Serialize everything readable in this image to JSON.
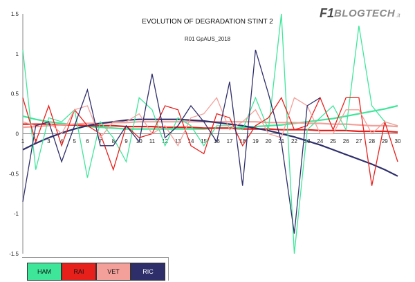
{
  "logo": {
    "f1": "F1",
    "blog": "BLOGTECH",
    "tld": ".it"
  },
  "chart_data": {
    "type": "line",
    "title": "EVOLUTION OF DEGRADATION STINT 2",
    "subtitle": "R01 GpAUS_2018",
    "x": [
      1,
      2,
      3,
      4,
      5,
      6,
      7,
      8,
      9,
      10,
      11,
      12,
      13,
      14,
      15,
      16,
      17,
      18,
      19,
      20,
      21,
      22,
      23,
      24,
      25,
      26,
      27,
      28,
      29,
      30
    ],
    "ylim": [
      -1.5,
      1.5
    ],
    "yticks": [
      "1.5",
      "1",
      "0.5",
      "0",
      "-0.5",
      "-1",
      "-1.5"
    ],
    "grid": false,
    "legend_position": "bottom-left",
    "series": [
      {
        "name": "HAM",
        "color": "#3ee69a",
        "values": [
          1.05,
          -0.45,
          0.2,
          0.15,
          0.3,
          -0.55,
          0.15,
          -0.05,
          -0.35,
          0.45,
          0.3,
          -0.15,
          0.2,
          0.1,
          -0.15,
          0.1,
          0.1,
          0.05,
          0.45,
          0.05,
          1.5,
          -1.5,
          0.05,
          0.2,
          0.35,
          0.05,
          1.35,
          0.35,
          0.15,
          0.1
        ],
        "trend": [
          0.22,
          0.18,
          0.15,
          0.13,
          0.11,
          0.09,
          0.08,
          0.07,
          0.06,
          0.06,
          0.06,
          0.06,
          0.06,
          0.06,
          0.06,
          0.07,
          0.07,
          0.08,
          0.09,
          0.1,
          0.11,
          0.13,
          0.15,
          0.17,
          0.19,
          0.22,
          0.25,
          0.28,
          0.31,
          0.35
        ]
      },
      {
        "name": "RAI",
        "color": "#e8201c",
        "values": [
          0.45,
          -0.1,
          0.35,
          -0.15,
          0.3,
          0.1,
          0.0,
          -0.45,
          0.1,
          -0.05,
          0.0,
          0.35,
          0.3,
          -0.15,
          -0.25,
          0.25,
          0.2,
          -0.15,
          0.1,
          0.2,
          0.45,
          0.05,
          0.1,
          0.45,
          0.05,
          0.45,
          0.45,
          -0.65,
          0.15,
          -0.35
        ],
        "trend": [
          0.12,
          0.12,
          0.12,
          0.11,
          0.11,
          0.1,
          0.1,
          0.1,
          0.09,
          0.09,
          0.09,
          0.08,
          0.08,
          0.08,
          0.07,
          0.07,
          0.07,
          0.06,
          0.06,
          0.06,
          0.05,
          0.05,
          0.05,
          0.04,
          0.04,
          0.04,
          0.03,
          0.03,
          0.03,
          0.02
        ]
      },
      {
        "name": "VET",
        "color": "#f4a09a",
        "values": [
          0.15,
          0.1,
          0.15,
          0.0,
          0.3,
          0.35,
          -0.05,
          0.15,
          0.15,
          0.25,
          0.0,
          0.1,
          -0.15,
          0.2,
          0.25,
          0.45,
          0.05,
          0.15,
          0.3,
          0.0,
          -0.05,
          0.45,
          0.35,
          0.0,
          0.0,
          0.3,
          0.3,
          0.0,
          0.15,
          0.1
        ],
        "trend": [
          0.08,
          0.09,
          0.1,
          0.11,
          0.12,
          0.13,
          0.13,
          0.14,
          0.14,
          0.15,
          0.15,
          0.15,
          0.15,
          0.15,
          0.15,
          0.15,
          0.15,
          0.15,
          0.15,
          0.14,
          0.14,
          0.14,
          0.13,
          0.13,
          0.12,
          0.12,
          0.11,
          0.1,
          0.1,
          0.09
        ]
      },
      {
        "name": "RIC",
        "color": "#2e2e6b",
        "values": [
          -0.85,
          0.1,
          0.15,
          -0.35,
          0.1,
          0.55,
          -0.15,
          -0.15,
          0.1,
          -0.1,
          0.75,
          -0.05,
          0.1,
          0.35,
          0.15,
          -0.1,
          0.65,
          -0.65,
          1.05,
          0.5,
          -0.1,
          -1.25,
          0.35,
          0.45,
          null,
          null,
          null,
          null,
          null,
          null
        ],
        "trend": [
          -0.2,
          -0.12,
          -0.05,
          0.01,
          0.06,
          0.1,
          0.13,
          0.15,
          0.17,
          0.18,
          0.18,
          0.18,
          0.18,
          0.17,
          0.16,
          0.14,
          0.12,
          0.1,
          0.07,
          0.04,
          0.0,
          -0.04,
          -0.09,
          -0.14,
          -0.2,
          -0.26,
          -0.32,
          -0.38,
          -0.45,
          -0.53
        ]
      }
    ]
  }
}
